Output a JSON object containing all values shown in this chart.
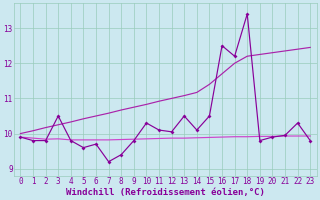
{
  "xlabel": "Windchill (Refroidissement éolien,°C)",
  "background_color": "#cce8f0",
  "grid_color": "#99ccbb",
  "line_color_zigzag": "#880099",
  "line_color_upper": "#aa22aa",
  "line_color_lower": "#cc44cc",
  "xlim": [
    -0.5,
    23.5
  ],
  "ylim": [
    8.8,
    13.7
  ],
  "x": [
    0,
    1,
    2,
    3,
    4,
    5,
    6,
    7,
    8,
    9,
    10,
    11,
    12,
    13,
    14,
    15,
    16,
    17,
    18,
    19,
    20,
    21,
    22,
    23
  ],
  "y_zigzag": [
    9.9,
    9.8,
    9.8,
    10.5,
    9.8,
    9.6,
    9.7,
    9.2,
    9.4,
    9.8,
    10.3,
    10.1,
    10.05,
    10.5,
    10.1,
    10.5,
    12.5,
    12.2,
    13.4,
    9.8,
    9.9,
    9.95,
    10.3,
    9.8
  ],
  "y_upper": [
    10.0,
    10.08,
    10.17,
    10.25,
    10.33,
    10.42,
    10.5,
    10.58,
    10.67,
    10.75,
    10.83,
    10.92,
    11.0,
    11.08,
    11.17,
    11.4,
    11.7,
    12.0,
    12.2,
    12.25,
    12.3,
    12.35,
    12.4,
    12.45
  ],
  "y_lower": [
    9.9,
    9.87,
    9.84,
    9.85,
    9.82,
    9.82,
    9.82,
    9.82,
    9.83,
    9.84,
    9.85,
    9.86,
    9.87,
    9.87,
    9.88,
    9.89,
    9.9,
    9.91,
    9.91,
    9.92,
    9.92,
    9.93,
    9.93,
    9.93
  ],
  "yticks": [
    9,
    10,
    11,
    12,
    13
  ],
  "xtick_labels": [
    "0",
    "1",
    "2",
    "3",
    "4",
    "5",
    "6",
    "7",
    "8",
    "9",
    "10",
    "11",
    "12",
    "13",
    "14",
    "15",
    "16",
    "17",
    "18",
    "19",
    "20",
    "21",
    "22",
    "23"
  ],
  "tick_fontsize": 5.5,
  "label_fontsize": 6.5
}
